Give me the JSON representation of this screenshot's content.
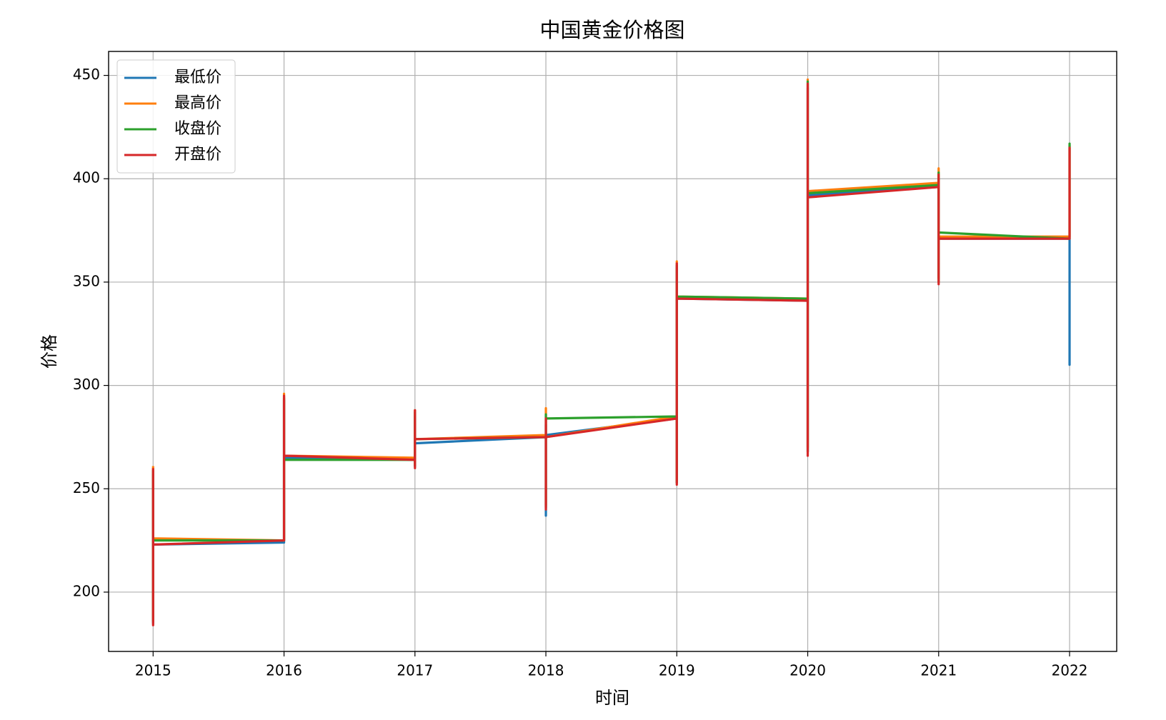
{
  "chart_data": {
    "type": "line",
    "title": "中国黄金价格图",
    "x_label": "时间",
    "y_label": "价格",
    "x": [
      2015,
      2015,
      2015,
      2016,
      2016,
      2016,
      2017,
      2017,
      2017,
      2017,
      2018,
      2018,
      2018,
      2018,
      2019,
      2019,
      2019,
      2019,
      2020,
      2020,
      2020,
      2020,
      2021,
      2021,
      2021,
      2021,
      2022,
      2022,
      2022
    ],
    "series": [
      {
        "name": "最低价",
        "color": "#1f77b4",
        "values": [
          257,
          185,
          223,
          224,
          293,
          265,
          264,
          285,
          261,
          272,
          275,
          237,
          281,
          276,
          284,
          253,
          357,
          342,
          341,
          268,
          444,
          392,
          396,
          352,
          400,
          371,
          371,
          310,
          368
        ]
      },
      {
        "name": "最高价",
        "color": "#ff7f0e",
        "values": [
          261,
          187,
          226,
          225,
          296,
          266,
          265,
          288,
          262,
          274,
          276,
          242,
          289,
          275,
          285,
          254,
          360,
          343,
          342,
          270,
          448,
          394,
          398,
          352,
          405,
          372,
          372,
          416,
          372
        ]
      },
      {
        "name": "收盘价",
        "color": "#2ca02c",
        "values": [
          259,
          186,
          225,
          225,
          294,
          264,
          264,
          287,
          261,
          274,
          275,
          241,
          286,
          284,
          285,
          253,
          358,
          343,
          342,
          268,
          447,
          393,
          397,
          350,
          403,
          374,
          371,
          417,
          372
        ]
      },
      {
        "name": "开盘价",
        "color": "#d62728",
        "values": [
          260,
          184,
          223,
          225,
          295,
          266,
          264,
          288,
          260,
          274,
          275,
          240,
          284,
          275,
          284,
          252,
          359,
          342,
          341,
          266,
          446,
          391,
          396,
          349,
          402,
          371,
          371,
          415,
          371
        ]
      }
    ],
    "xlim": [
      2014.66,
      2022.36
    ],
    "ylim": [
      171.3,
      461.6
    ],
    "xticks": [
      2015,
      2016,
      2017,
      2018,
      2019,
      2020,
      2021,
      2022
    ],
    "yticks": [
      200,
      250,
      300,
      350,
      400,
      450
    ],
    "grid": true,
    "legend": "upper left"
  }
}
